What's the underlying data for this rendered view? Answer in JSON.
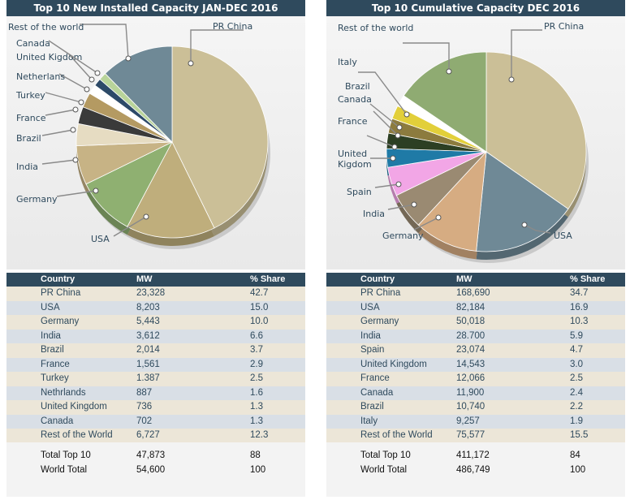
{
  "panels": [
    {
      "id": "left",
      "title": "Top 10 New Installed Capacity JAN-DEC 2016",
      "header": {
        "country": "Country",
        "mw": "MW",
        "share": "% Share"
      },
      "rows": [
        {
          "country": "PR China",
          "mw": "23,328",
          "share": "42.7"
        },
        {
          "country": "USA",
          "mw": "8,203",
          "share": "15.0"
        },
        {
          "country": "Germany",
          "mw": "5,443",
          "share": "10.0"
        },
        {
          "country": "India",
          "mw": "3,612",
          "share": "6.6"
        },
        {
          "country": "Brazil",
          "mw": "2,014",
          "share": "3.7"
        },
        {
          "country": "France",
          "mw": "1,561",
          "share": "2.9"
        },
        {
          "country": "Turkey",
          "mw": "1.387",
          "share": "2.5"
        },
        {
          "country": "Nethrlands",
          "mw": "887",
          "share": "1.6"
        },
        {
          "country": "United Kingdom",
          "mw": "736",
          "share": "1.3"
        },
        {
          "country": "Canada",
          "mw": "702",
          "share": "1.3"
        },
        {
          "country": "Rest of the World",
          "mw": "6,727",
          "share": "12.3"
        }
      ],
      "totals": [
        {
          "label": "Total  Top 10",
          "mw": "47,873",
          "share": "88"
        },
        {
          "label": "World Total",
          "mw": "54,600",
          "share": "100"
        }
      ]
    },
    {
      "id": "right",
      "title": "Top 10 Cumulative Capacity DEC 2016",
      "header": {
        "country": "Country",
        "mw": "MW",
        "share": "% Share"
      },
      "rows": [
        {
          "country": "PR China",
          "mw": "168,690",
          "share": "34.7"
        },
        {
          "country": "USA",
          "mw": "82,184",
          "share": "16.9"
        },
        {
          "country": "Germany",
          "mw": "50,018",
          "share": "10.3"
        },
        {
          "country": "India",
          "mw": "28.700",
          "share": "5.9"
        },
        {
          "country": "Spain",
          "mw": "23,074",
          "share": "4.7"
        },
        {
          "country": "United Kingdom",
          "mw": "14,543",
          "share": "3.0"
        },
        {
          "country": "France",
          "mw": "12,066",
          "share": "2.5"
        },
        {
          "country": "Canada",
          "mw": "11,900",
          "share": "2.4"
        },
        {
          "country": "Brazil",
          "mw": "10,740",
          "share": "2.2"
        },
        {
          "country": "Italy",
          "mw": "9,257",
          "share": "1.9"
        },
        {
          "country": "Rest of the World",
          "mw": "75,577",
          "share": "15.5"
        }
      ],
      "totals": [
        {
          "label": "Total  Top 10",
          "mw": "411,172",
          "share": "84"
        },
        {
          "label": "World Total",
          "mw": "486,749",
          "share": "100"
        }
      ]
    }
  ],
  "chart_data": [
    {
      "type": "pie",
      "title": "Top 10 New Installed Capacity JAN-DEC 2016",
      "slices": [
        {
          "label": "PR China",
          "value": 42.7,
          "color": "#cbbf97"
        },
        {
          "label": "USA",
          "value": 15.0,
          "color": "#bfae7c"
        },
        {
          "label": "Germany",
          "value": 10.0,
          "color": "#8fb071"
        },
        {
          "label": "India",
          "value": 6.6,
          "color": "#c7b385"
        },
        {
          "label": "Brazil",
          "value": 3.7,
          "color": "#e6dcc2"
        },
        {
          "label": "France",
          "value": 2.9,
          "color": "#3a3a3a"
        },
        {
          "label": "Turkey",
          "value": 2.5,
          "color": "#b49a62"
        },
        {
          "label": "Netherlans",
          "value": 1.6,
          "color": "#ffffff"
        },
        {
          "label": "United Kigdom",
          "value": 1.3,
          "color": "#2d4a68"
        },
        {
          "label": "Canada",
          "value": 1.3,
          "color": "#b9d49a"
        },
        {
          "label": "Rest of the world",
          "value": 12.3,
          "color": "#6f8996"
        }
      ]
    },
    {
      "type": "pie",
      "title": "Top 10 Cumulative Capacity DEC 2016",
      "slices": [
        {
          "label": "PR China",
          "value": 34.7,
          "color": "#cbbf97"
        },
        {
          "label": "USA",
          "value": 16.9,
          "color": "#6f8996"
        },
        {
          "label": "Germany",
          "value": 10.3,
          "color": "#d6ac82"
        },
        {
          "label": "India",
          "value": 5.9,
          "color": "#9a8a72"
        },
        {
          "label": "Spain",
          "value": 4.7,
          "color": "#f2a6e6"
        },
        {
          "label": "United Kigdom",
          "value": 3.0,
          "color": "#1f7aa6"
        },
        {
          "label": "France",
          "value": 2.5,
          "color": "#2c3f23"
        },
        {
          "label": "Canada",
          "value": 2.4,
          "color": "#8c7b3e"
        },
        {
          "label": "Brazil",
          "value": 2.2,
          "color": "#e2cf3a"
        },
        {
          "label": "Italy",
          "value": 1.9,
          "color": "#ffffff"
        },
        {
          "label": "Rest of the world",
          "value": 15.5,
          "color": "#8fab72"
        }
      ]
    }
  ]
}
